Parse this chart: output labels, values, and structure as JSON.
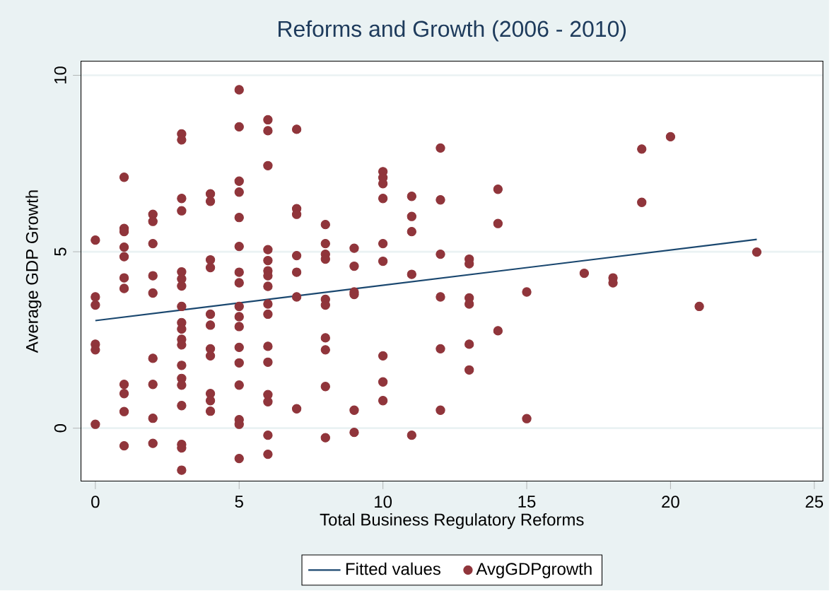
{
  "chart_data": {
    "type": "scatter",
    "title": "Reforms and Growth (2006 - 2010)",
    "xlabel": "Total Business Regulatory Reforms",
    "ylabel": "Average GDP Growth",
    "xlim": [
      -0.5,
      25.3
    ],
    "ylim": [
      -1.5,
      10.4
    ],
    "xticks": [
      0,
      5,
      10,
      15,
      20,
      25
    ],
    "yticks": [
      0,
      5,
      10
    ],
    "grid": "y",
    "legend": "bottom",
    "series": [
      {
        "name": "Fitted values",
        "type": "line",
        "color": "#1a476f",
        "marker": "none",
        "line_style": "solid",
        "x": [
          0,
          23
        ],
        "values": [
          3.05,
          5.35
        ]
      },
      {
        "name": "AvgGDPgrowth",
        "color": "#90353b",
        "marker": "circle",
        "x": [
          0,
          0,
          0,
          0,
          0,
          0,
          1,
          1,
          1,
          1,
          1,
          1,
          1,
          1,
          1,
          1,
          1,
          2,
          2,
          2,
          2,
          2,
          2,
          2,
          2,
          2,
          3,
          3,
          3,
          3,
          3,
          3,
          3,
          3,
          3,
          3,
          3,
          3,
          3,
          3,
          3,
          3,
          3,
          3,
          3,
          4,
          4,
          4,
          4,
          4,
          4,
          4,
          4,
          4,
          4,
          4,
          5,
          5,
          5,
          5,
          5,
          5,
          5,
          5,
          5,
          5,
          5,
          5,
          5,
          5,
          5,
          5,
          5,
          6,
          6,
          6,
          6,
          6,
          6,
          6,
          6,
          6,
          6,
          6,
          6,
          6,
          6,
          6,
          6,
          7,
          7,
          7,
          7,
          7,
          7,
          7,
          8,
          8,
          8,
          8,
          8,
          8,
          8,
          8,
          8,
          8,
          9,
          9,
          9,
          9,
          9,
          9,
          10,
          10,
          10,
          10,
          10,
          10,
          10,
          10,
          10,
          11,
          11,
          11,
          11,
          11,
          12,
          12,
          12,
          12,
          12,
          12,
          13,
          13,
          13,
          13,
          13,
          13,
          14,
          14,
          14,
          15,
          15,
          17,
          18,
          18,
          19,
          19,
          20,
          21,
          23
        ],
        "values": [
          5.33,
          3.72,
          3.49,
          2.38,
          2.22,
          0.11,
          7.11,
          5.66,
          5.57,
          5.13,
          4.86,
          4.26,
          3.96,
          1.24,
          0.98,
          0.47,
          -0.5,
          6.06,
          5.86,
          5.23,
          4.32,
          3.83,
          1.98,
          1.24,
          0.28,
          -0.43,
          8.34,
          8.17,
          6.51,
          6.16,
          4.43,
          4.23,
          4.03,
          3.45,
          2.99,
          2.81,
          2.52,
          2.36,
          1.78,
          1.41,
          1.22,
          0.64,
          -0.46,
          -0.56,
          -1.19,
          6.64,
          6.43,
          4.77,
          4.55,
          3.23,
          2.92,
          2.25,
          2.05,
          0.98,
          0.78,
          0.48,
          9.59,
          8.54,
          7.0,
          6.69,
          5.97,
          5.15,
          4.42,
          4.12,
          3.45,
          3.16,
          2.88,
          2.29,
          1.85,
          1.22,
          0.24,
          0.11,
          -0.86,
          8.74,
          8.43,
          7.44,
          5.06,
          4.75,
          4.46,
          4.32,
          4.02,
          3.52,
          3.23,
          2.32,
          1.87,
          0.95,
          0.75,
          -0.2,
          -0.74,
          8.47,
          6.22,
          6.06,
          4.89,
          4.42,
          3.72,
          0.55,
          5.77,
          5.23,
          4.93,
          4.79,
          3.65,
          3.49,
          2.56,
          2.22,
          1.18,
          -0.27,
          5.1,
          4.59,
          3.86,
          3.79,
          0.51,
          -0.12,
          7.27,
          7.1,
          6.93,
          6.51,
          5.23,
          4.73,
          2.05,
          1.31,
          0.78,
          6.57,
          6.0,
          5.57,
          4.36,
          -0.2,
          7.94,
          6.47,
          4.93,
          3.72,
          2.25,
          0.51,
          4.79,
          4.66,
          3.69,
          3.52,
          2.38,
          1.65,
          6.77,
          5.8,
          2.76,
          3.86,
          0.27,
          4.39,
          4.26,
          4.12,
          7.91,
          6.4,
          8.26,
          3.45,
          4.99
        ]
      }
    ]
  }
}
